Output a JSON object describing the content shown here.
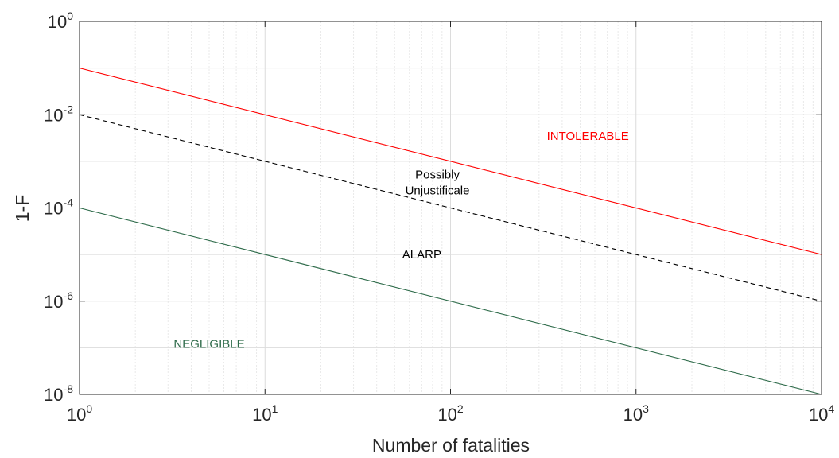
{
  "chart_data": {
    "type": "line",
    "title": "",
    "xlabel": "Number of fatalities",
    "ylabel": "1-F",
    "xscale": "log",
    "yscale": "log",
    "xlim": [
      1,
      10000
    ],
    "ylim": [
      1e-08,
      1
    ],
    "grid": true,
    "xticks": [
      {
        "value": 1,
        "base": "10",
        "exp": "0"
      },
      {
        "value": 10,
        "base": "10",
        "exp": "1"
      },
      {
        "value": 100,
        "base": "10",
        "exp": "2"
      },
      {
        "value": 1000,
        "base": "10",
        "exp": "3"
      },
      {
        "value": 10000,
        "base": "10",
        "exp": "4"
      }
    ],
    "yticks": [
      {
        "value": 1,
        "base": "10",
        "exp": "0"
      },
      {
        "value": 0.01,
        "base": "10",
        "exp": "-2"
      },
      {
        "value": 0.0001,
        "base": "10",
        "exp": "-4"
      },
      {
        "value": 1e-06,
        "base": "10",
        "exp": "-6"
      },
      {
        "value": 1e-08,
        "base": "10",
        "exp": "-8"
      }
    ],
    "series": [
      {
        "color": "#ff0000",
        "style": "solid",
        "points": [
          [
            1,
            0.1
          ],
          [
            10000,
            1e-05
          ]
        ]
      },
      {
        "color": "#000000",
        "style": "dashed",
        "points": [
          [
            1,
            0.01
          ],
          [
            10000,
            1e-06
          ]
        ]
      },
      {
        "color": "#2e6b4a",
        "style": "solid",
        "points": [
          [
            1,
            0.0001
          ],
          [
            10000,
            1e-08
          ]
        ]
      }
    ],
    "annotations": [
      {
        "lines": [
          "INTOLERABLE"
        ],
        "x": 550,
        "y": 0.0035,
        "color": "#ff0000"
      },
      {
        "lines": [
          "Possibly",
          "Unjustificale"
        ],
        "x": 85,
        "y": 0.00035,
        "color": "#000000"
      },
      {
        "lines": [
          "ALARP"
        ],
        "x": 70,
        "y": 1e-05,
        "color": "#000000"
      },
      {
        "lines": [
          "NEGLIGIBLE"
        ],
        "x": 5,
        "y": 1.2e-07,
        "color": "#2e6b4a"
      }
    ]
  }
}
